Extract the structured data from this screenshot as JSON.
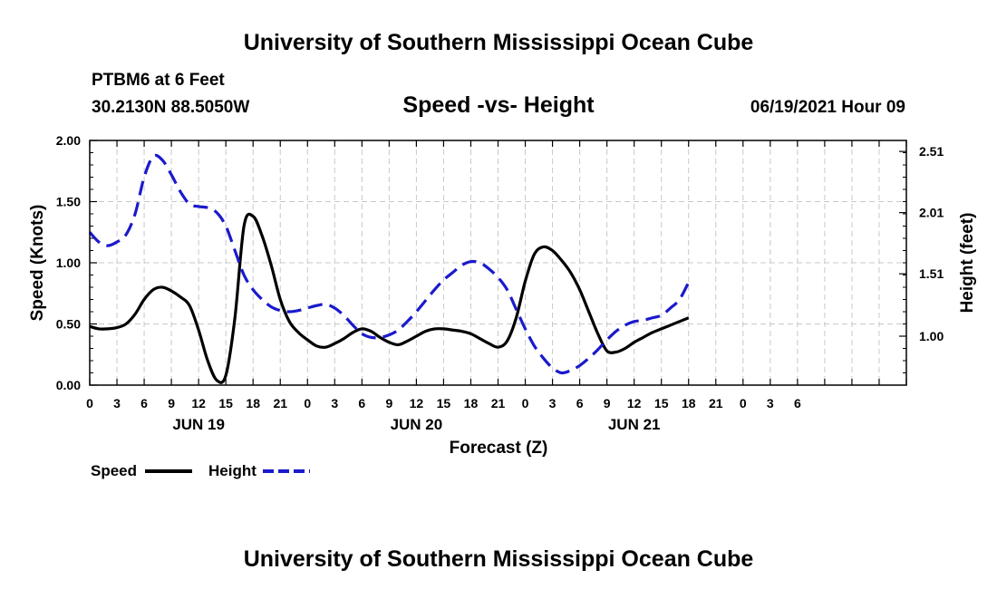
{
  "header": {
    "title": "University of Southern Mississippi Ocean Cube",
    "station": "PTBM6 at 6 Feet",
    "coords": "30.2130N  88.5050W",
    "subtitle": "Speed -vs- Height",
    "datetime": "06/19/2021 Hour 09"
  },
  "footer": {
    "title": "University of Southern Mississippi Ocean Cube"
  },
  "legend": {
    "speed_label": "Speed",
    "height_label": "Height"
  },
  "colors": {
    "speed": "#000000",
    "height": "#1a1acc",
    "grid": "#c8c8c8"
  },
  "chart_data": {
    "type": "line",
    "title": "Speed -vs- Height",
    "xlabel": "Forecast (Z)",
    "ylabel_left": "Speed (Knots)",
    "ylabel_right": "Height (feet)",
    "x_unit": "hours from JUN 19 00Z",
    "xlim": [
      -12,
      78
    ],
    "ylim_left": [
      0,
      2
    ],
    "ylim_right": [
      0.6,
      2.6
    ],
    "x_tick_values": [
      -12,
      -9,
      -6,
      -3,
      0,
      3,
      6,
      9,
      12,
      15,
      18,
      21,
      24,
      27,
      30,
      33,
      36,
      39,
      42,
      45,
      48,
      51,
      54,
      57,
      60,
      63,
      66,
      69,
      72,
      75,
      78
    ],
    "x_tick_labels": [
      "0",
      "3",
      "6",
      "9",
      "12",
      "15",
      "18",
      "21",
      "0",
      "3",
      "6",
      "9",
      "12",
      "15",
      "18",
      "21",
      "0",
      "3",
      "6",
      "9",
      "12",
      "15",
      "18",
      "21",
      "0",
      "3",
      "6"
    ],
    "date_labels": [
      {
        "x": 0,
        "label": "JUN 19"
      },
      {
        "x": 24,
        "label": "JUN 20"
      },
      {
        "x": 48,
        "label": "JUN 21"
      }
    ],
    "y_left_ticks": [
      0,
      0.5,
      1,
      1.5,
      2
    ],
    "y_left_tick_labels": [
      "0.00",
      "0.50",
      "1.00",
      "1.50",
      "2.00"
    ],
    "y_right_ticks": [
      1.0,
      1.51,
      2.01,
      2.51
    ],
    "y_right_tick_labels": [
      "1.00",
      "1.51",
      "2.01",
      "2.51"
    ],
    "series": [
      {
        "name": "Speed",
        "axis": "left",
        "style": "solid",
        "x": [
          -12,
          -11,
          -10,
          -9,
          -8,
          -7,
          -6,
          -5,
          -4,
          -3,
          -2,
          -1,
          0,
          1,
          2,
          3,
          4,
          5,
          6,
          7,
          8,
          9,
          10,
          11,
          12,
          13,
          14,
          15,
          16,
          17,
          18,
          19,
          20,
          21,
          22,
          23,
          24,
          25,
          26,
          27,
          28,
          29,
          30,
          31,
          32,
          33,
          34,
          35,
          36,
          37,
          38,
          39,
          40,
          41,
          42,
          43,
          44,
          45,
          46,
          47,
          48,
          49,
          50,
          51,
          52,
          53,
          54
        ],
        "values": [
          0.48,
          0.46,
          0.46,
          0.47,
          0.5,
          0.58,
          0.7,
          0.78,
          0.8,
          0.77,
          0.72,
          0.65,
          0.45,
          0.2,
          0.04,
          0.08,
          0.55,
          1.3,
          1.38,
          1.22,
          0.98,
          0.7,
          0.52,
          0.43,
          0.37,
          0.32,
          0.31,
          0.34,
          0.38,
          0.43,
          0.46,
          0.44,
          0.39,
          0.35,
          0.33,
          0.36,
          0.4,
          0.44,
          0.46,
          0.46,
          0.45,
          0.44,
          0.42,
          0.38,
          0.34,
          0.31,
          0.36,
          0.55,
          0.85,
          1.07,
          1.13,
          1.1,
          1.02,
          0.92,
          0.78,
          0.6,
          0.42,
          0.28,
          0.27,
          0.3,
          0.35,
          0.39,
          0.43,
          0.46,
          0.49,
          0.52,
          0.55
        ]
      },
      {
        "name": "Height",
        "axis": "right",
        "style": "dashed",
        "x": [
          -12,
          -11,
          -10,
          -9,
          -8,
          -7,
          -6,
          -5,
          -4,
          -3,
          -2,
          -1,
          0,
          1,
          2,
          3,
          4,
          5,
          6,
          7,
          8,
          9,
          10,
          11,
          12,
          13,
          14,
          15,
          16,
          17,
          18,
          19,
          20,
          21,
          22,
          23,
          24,
          25,
          26,
          27,
          28,
          29,
          30,
          31,
          32,
          33,
          34,
          35,
          36,
          37,
          38,
          39,
          40,
          41,
          42,
          43,
          44,
          45,
          46,
          47,
          48,
          49,
          50,
          51,
          52,
          53,
          54
        ],
        "values": [
          1.85,
          1.77,
          1.74,
          1.77,
          1.83,
          2.0,
          2.3,
          2.47,
          2.44,
          2.32,
          2.18,
          2.08,
          2.06,
          2.05,
          2.01,
          1.9,
          1.7,
          1.5,
          1.38,
          1.3,
          1.24,
          1.21,
          1.2,
          1.21,
          1.23,
          1.25,
          1.26,
          1.23,
          1.17,
          1.09,
          1.02,
          0.99,
          0.99,
          1.01,
          1.05,
          1.12,
          1.2,
          1.29,
          1.38,
          1.46,
          1.52,
          1.58,
          1.61,
          1.6,
          1.55,
          1.48,
          1.38,
          1.22,
          1.06,
          0.92,
          0.82,
          0.74,
          0.7,
          0.72,
          0.76,
          0.82,
          0.89,
          0.97,
          1.04,
          1.09,
          1.12,
          1.13,
          1.15,
          1.17,
          1.23,
          1.3,
          1.44
        ]
      }
    ]
  }
}
